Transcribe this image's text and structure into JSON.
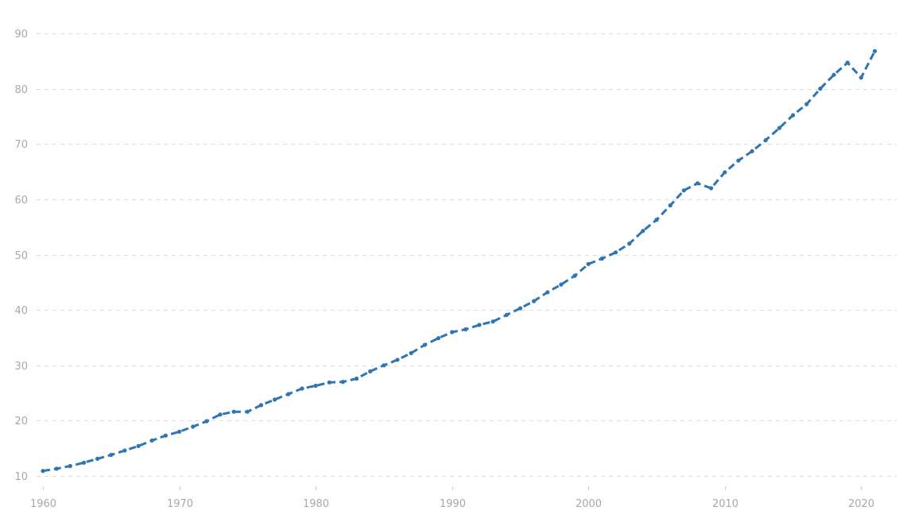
{
  "chart_data": {
    "type": "line",
    "title": "",
    "xlabel": "",
    "ylabel": "",
    "ylim": [
      10,
      90
    ],
    "xlim": [
      1960,
      2021
    ],
    "grid": true,
    "legend": null,
    "y_ticks": [
      10,
      20,
      30,
      40,
      50,
      60,
      70,
      80,
      90
    ],
    "x_ticks": [
      1960,
      1970,
      1980,
      1990,
      2000,
      2010,
      2020
    ],
    "series": [
      {
        "name": "value",
        "color": "#2e75b1",
        "x": [
          1960,
          1961,
          1962,
          1963,
          1964,
          1965,
          1966,
          1967,
          1968,
          1969,
          1970,
          1971,
          1972,
          1973,
          1974,
          1975,
          1976,
          1977,
          1978,
          1979,
          1980,
          1981,
          1982,
          1983,
          1984,
          1985,
          1986,
          1987,
          1988,
          1989,
          1990,
          1991,
          1992,
          1993,
          1994,
          1995,
          1996,
          1997,
          1998,
          1999,
          2000,
          2001,
          2002,
          2003,
          2004,
          2005,
          2006,
          2007,
          2008,
          2009,
          2010,
          2011,
          2012,
          2013,
          2014,
          2015,
          2016,
          2017,
          2018,
          2019,
          2020,
          2021
        ],
        "values": [
          10.9,
          11.3,
          11.8,
          12.4,
          13.1,
          13.8,
          14.6,
          15.4,
          16.4,
          17.3,
          18.0,
          18.9,
          19.9,
          21.1,
          21.6,
          21.6,
          22.8,
          23.8,
          24.8,
          25.8,
          26.3,
          26.9,
          27.0,
          27.6,
          28.9,
          30.0,
          31.0,
          32.2,
          33.7,
          34.9,
          36.0,
          36.5,
          37.3,
          37.9,
          39.1,
          40.3,
          41.6,
          43.2,
          44.6,
          46.2,
          48.3,
          49.3,
          50.4,
          52.0,
          54.3,
          56.3,
          58.9,
          61.6,
          62.9,
          62.0,
          64.9,
          67.0,
          68.7,
          70.7,
          72.9,
          75.2,
          77.2,
          80.0,
          82.5,
          84.7,
          82.0,
          86.8
        ]
      }
    ]
  },
  "axes": {
    "y_labels": [
      "10",
      "20",
      "30",
      "40",
      "50",
      "60",
      "70",
      "80",
      "90"
    ],
    "x_labels": [
      "1960",
      "1970",
      "1980",
      "1990",
      "2000",
      "2010",
      "2020"
    ]
  },
  "colors": {
    "line": "#2e75b1",
    "grid": "#dddddd",
    "tick_text": "#a8a8a8"
  }
}
